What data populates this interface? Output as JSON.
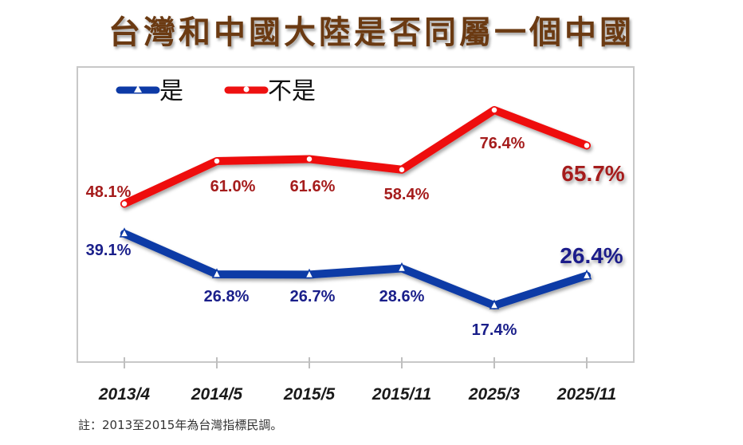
{
  "title": "台灣和中國大陸是否同屬一個中國",
  "note": "註：2013至2015年為台灣指標民調。",
  "legend": [
    {
      "label": "是",
      "color": "#0d3aa6",
      "marker": "triangle"
    },
    {
      "label": "不是",
      "color": "#ee1111",
      "marker": "circle"
    }
  ],
  "chart_data": {
    "type": "line",
    "title": "台灣和中國大陸是否同屬一個中國",
    "categories": [
      "2013/4",
      "2014/5",
      "2015/5",
      "2015/11",
      "2025/3",
      "2025/11"
    ],
    "series": [
      {
        "name": "是",
        "values": [
          39.1,
          26.8,
          26.7,
          28.6,
          17.4,
          26.4
        ],
        "labels": [
          "39.1%",
          "26.8%",
          "26.7%",
          "28.6%",
          "17.4%",
          "26.4%"
        ],
        "color": "#0d3aa6",
        "label_color": "#1a1f8a"
      },
      {
        "name": "不是",
        "values": [
          48.1,
          61.0,
          61.6,
          58.4,
          76.4,
          65.7
        ],
        "labels": [
          "48.1%",
          "61.0%",
          "61.6%",
          "58.4%",
          "76.4%",
          "65.7%"
        ],
        "color": "#ee1111",
        "label_color": "#a51c1c"
      }
    ],
    "xlabel": "",
    "ylabel": "",
    "grid": false,
    "legend_position": "top-left",
    "note": "註：2013至2015年為台灣指標民調。"
  }
}
